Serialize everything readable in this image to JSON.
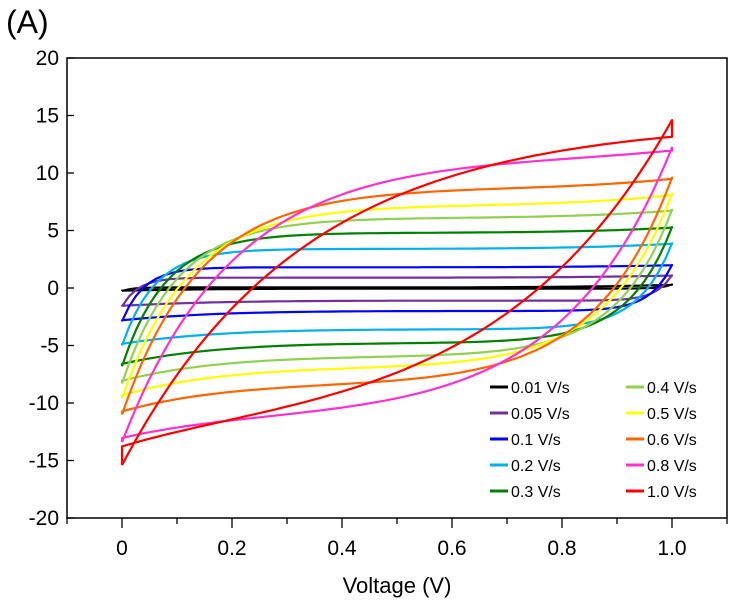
{
  "chart_data": {
    "type": "line",
    "panel_label": "(A)",
    "xlabel": "Voltage (V)",
    "ylabel": "",
    "xlim": [
      -0.1,
      1.1
    ],
    "ylim": [
      -20,
      20
    ],
    "x_ticks": [
      0,
      0.2,
      0.4,
      0.6,
      0.8,
      1.0
    ],
    "x_tick_labels": [
      "0",
      "0.2",
      "0.4",
      "0.6",
      "0.8",
      "1.0"
    ],
    "y_ticks": [
      20,
      15,
      10,
      5,
      0,
      -5,
      -10,
      -15,
      -20
    ],
    "y_tick_labels": [
      "20",
      "15",
      "10",
      "5",
      "0",
      "-5",
      "-10",
      "-15",
      "-20"
    ],
    "grid": false,
    "legend_position": "bottom-right",
    "series": [
      {
        "name": "0.01 V/s",
        "color": "#000000",
        "upper_plateau": 0.05,
        "lower_plateau": -0.05,
        "start": -0.25,
        "end": 0.3,
        "rise": 0.02
      },
      {
        "name": "0.05 V/s",
        "color": "#7030a0",
        "upper_plateau": 0.9,
        "lower_plateau": -1.1,
        "start": -1.6,
        "end": 1.1,
        "rise": 0.03
      },
      {
        "name": "0.1 V/s",
        "color": "#0000ff",
        "upper_plateau": 1.8,
        "lower_plateau": -2.0,
        "start": -2.9,
        "end": 2.0,
        "rise": 0.04
      },
      {
        "name": "0.2 V/s",
        "color": "#00b0f0",
        "upper_plateau": 3.4,
        "lower_plateau": -3.6,
        "start": -5.0,
        "end": 3.9,
        "rise": 0.06
      },
      {
        "name": "0.3 V/s",
        "color": "#008000",
        "upper_plateau": 4.8,
        "lower_plateau": -4.8,
        "start": -6.8,
        "end": 5.3,
        "rise": 0.08
      },
      {
        "name": "0.4 V/s",
        "color": "#92d050",
        "upper_plateau": 6.1,
        "lower_plateau": -6.0,
        "start": -8.3,
        "end": 6.8,
        "rise": 0.1
      },
      {
        "name": "0.5 V/s",
        "color": "#ffff00",
        "upper_plateau": 7.2,
        "lower_plateau": -7.0,
        "start": -9.6,
        "end": 8.2,
        "rise": 0.12
      },
      {
        "name": "0.6 V/s",
        "color": "#ff6600",
        "upper_plateau": 8.7,
        "lower_plateau": -8.5,
        "start": -11.0,
        "end": 9.6,
        "rise": 0.14
      },
      {
        "name": "0.8 V/s",
        "color": "#ff33cc",
        "upper_plateau": 11.5,
        "lower_plateau": -11.5,
        "start": -13.4,
        "end": 12.2,
        "rise": 0.2
      },
      {
        "name": "1.0 V/s",
        "color": "#ff0000",
        "upper_plateau": 14.6,
        "lower_plateau": -13.5,
        "start": -15.4,
        "end": 14.6,
        "rise": 0.33
      }
    ]
  }
}
